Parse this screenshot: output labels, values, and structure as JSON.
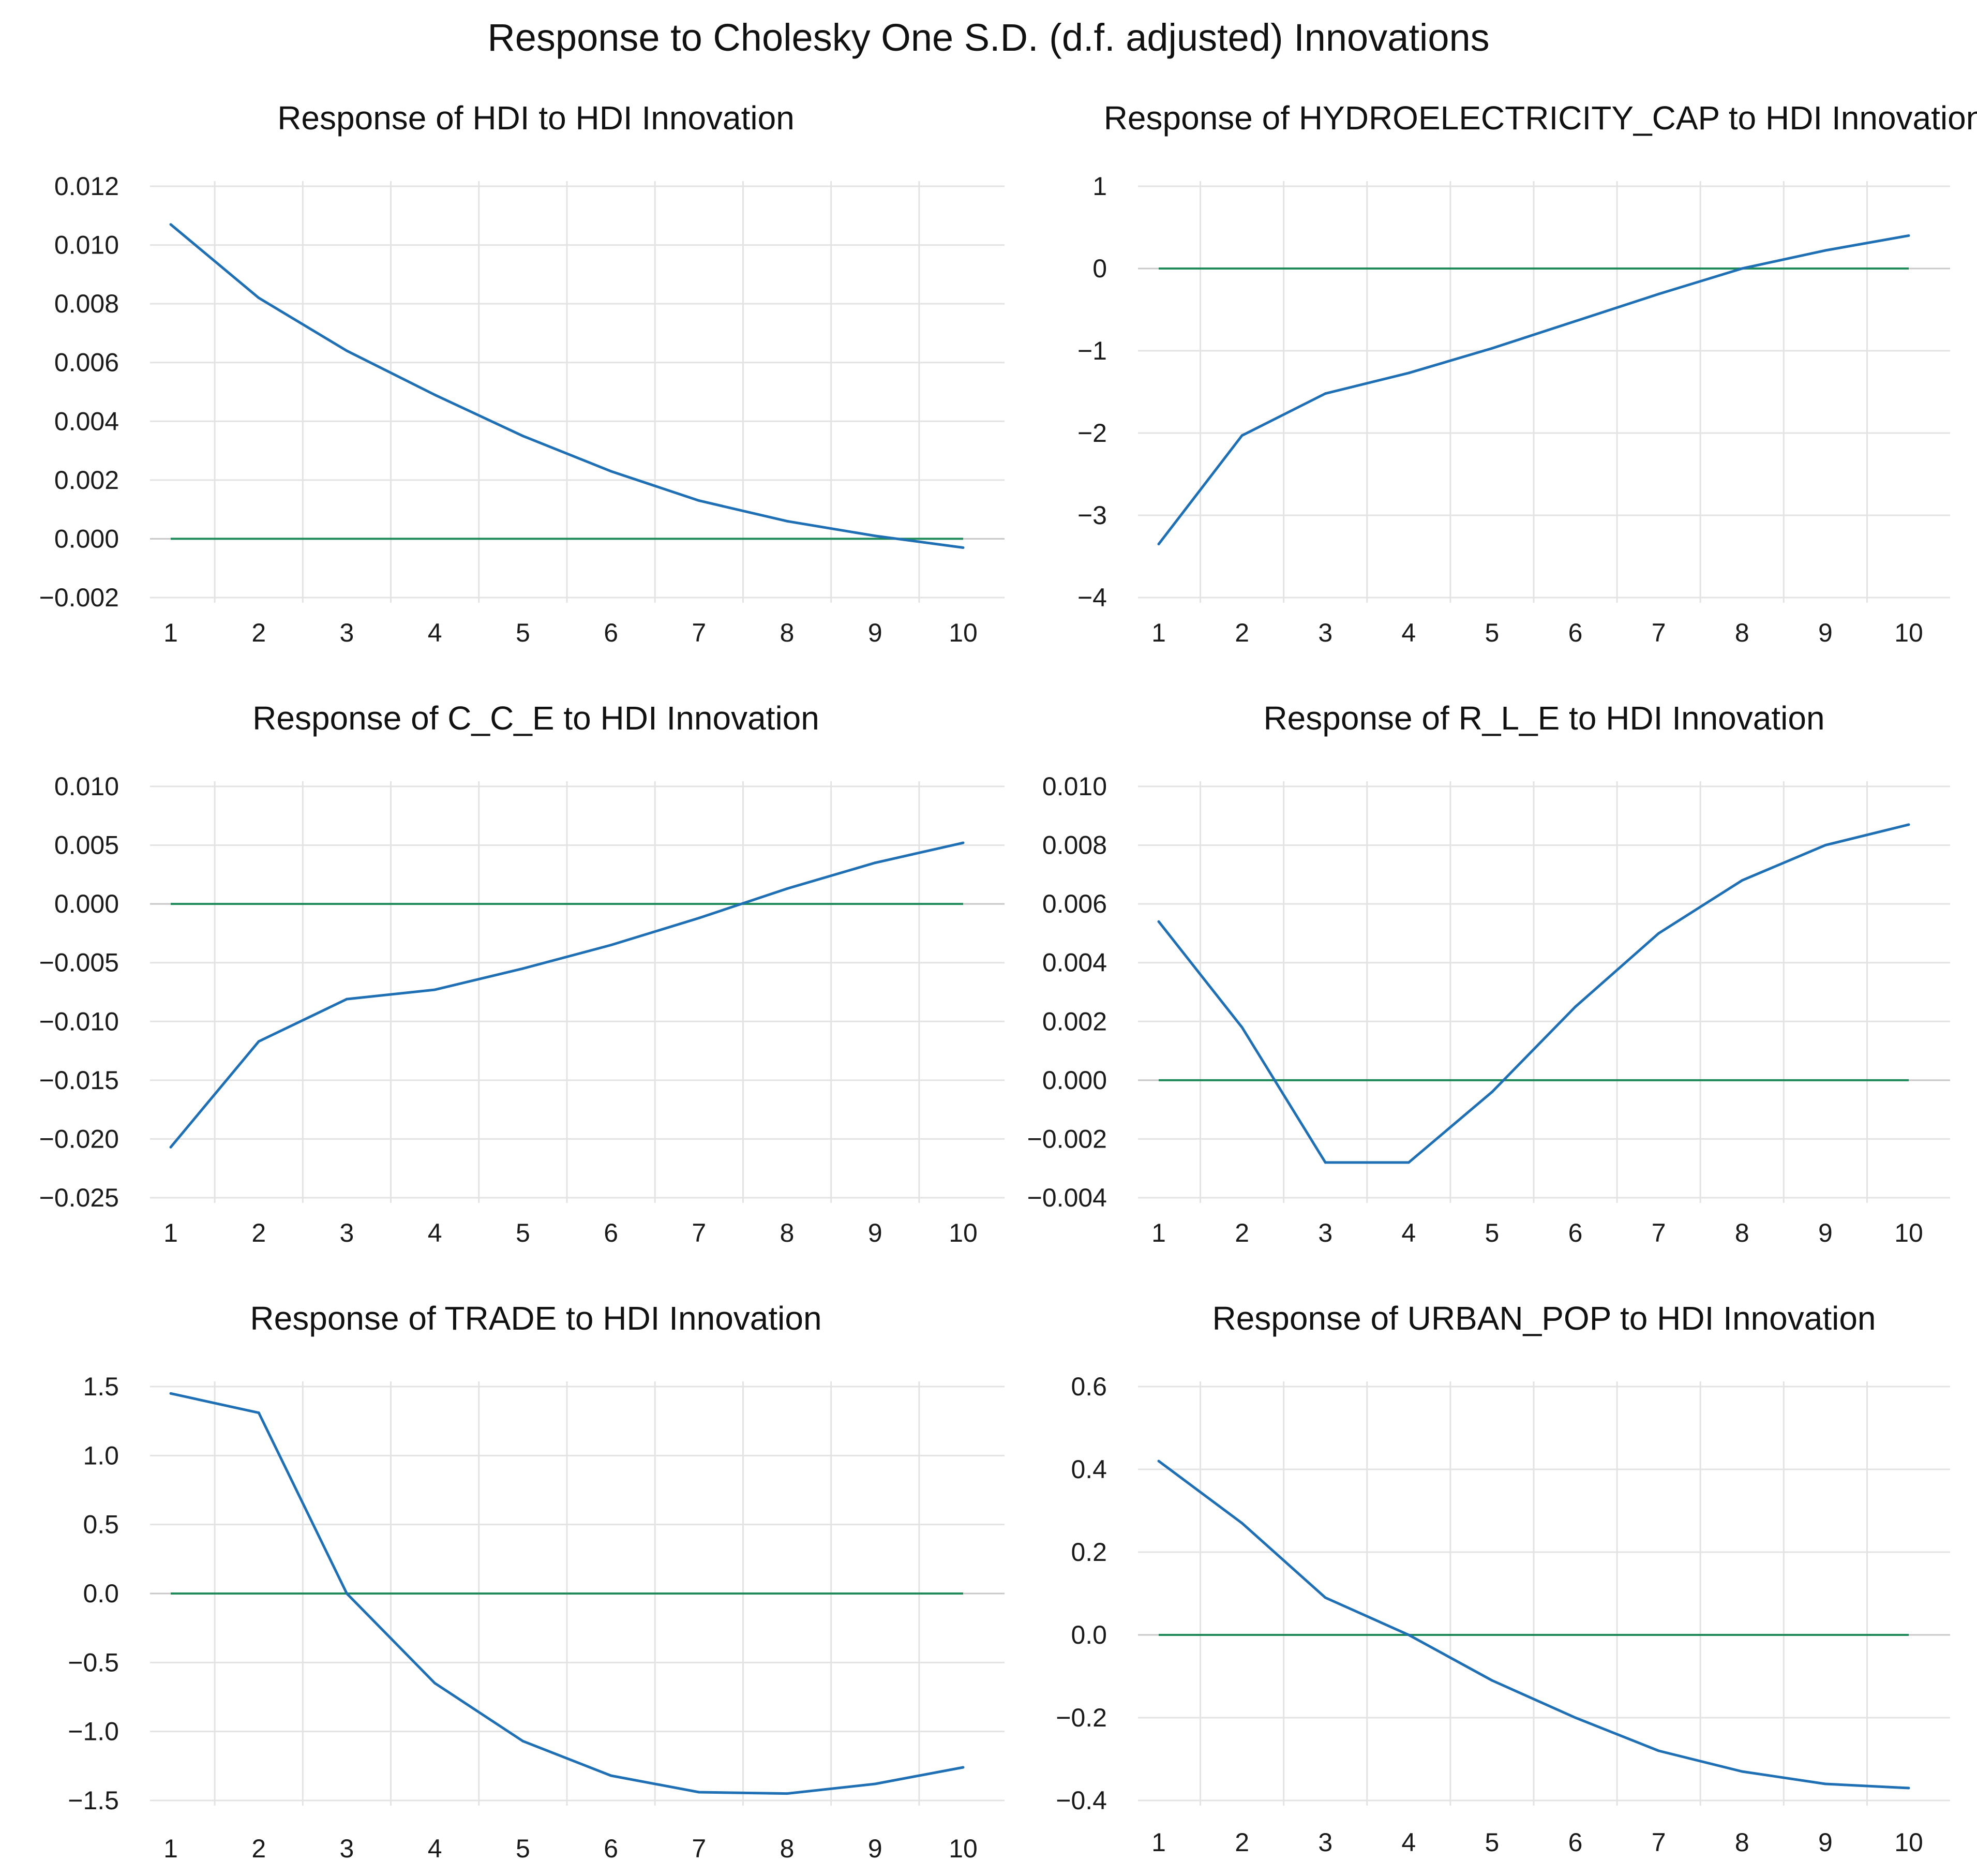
{
  "chart_data": {
    "title": "Response to Cholesky One S.D. (d.f. adjusted) Innovations",
    "colors": {
      "series": "#1f6fb4",
      "zero_line": "#1e8a5a",
      "grid": "#e3e3e3"
    },
    "panels": [
      {
        "type": "line",
        "title": "Response of HDI to HDI Innovation",
        "x": [
          1,
          2,
          3,
          4,
          5,
          6,
          7,
          8,
          9,
          10
        ],
        "x_labels": [
          "1",
          "2",
          "3",
          "4",
          "5",
          "6",
          "7",
          "8",
          "9",
          "10"
        ],
        "values": [
          0.0107,
          0.0082,
          0.0064,
          0.0049,
          0.0035,
          0.0023,
          0.0013,
          0.0006,
          0.0001,
          -0.0003
        ],
        "ylim": [
          -0.002,
          0.012
        ],
        "y_ticks": [
          0.012,
          0.01,
          0.008,
          0.006,
          0.004,
          0.002,
          0.0,
          -0.002
        ],
        "y_tick_labels": [
          "0.012",
          "0.010",
          "0.008",
          "0.006",
          "0.004",
          "0.002",
          "0.000",
          "−0.002"
        ]
      },
      {
        "type": "line",
        "title": "Response of HYDROELECTRICITY_CAP to HDI Innovation",
        "x": [
          1,
          2,
          3,
          4,
          5,
          6,
          7,
          8,
          9,
          10
        ],
        "x_labels": [
          "1",
          "2",
          "3",
          "4",
          "5",
          "6",
          "7",
          "8",
          "9",
          "10"
        ],
        "values": [
          -3.35,
          -2.03,
          -1.52,
          -1.27,
          -0.97,
          -0.64,
          -0.31,
          0.0,
          0.22,
          0.4
        ],
        "ylim": [
          -4,
          1
        ],
        "y_ticks": [
          1,
          0,
          -1,
          -2,
          -3,
          -4
        ],
        "y_tick_labels": [
          "1",
          "0",
          "−1",
          "−2",
          "−3",
          "−4"
        ]
      },
      {
        "type": "line",
        "title": "Response of C_C_E to HDI Innovation",
        "x": [
          1,
          2,
          3,
          4,
          5,
          6,
          7,
          8,
          9,
          10
        ],
        "x_labels": [
          "1",
          "2",
          "3",
          "4",
          "5",
          "6",
          "7",
          "8",
          "9",
          "10"
        ],
        "values": [
          -0.0207,
          -0.0117,
          -0.0081,
          -0.0073,
          -0.0055,
          -0.0035,
          -0.0012,
          0.0013,
          0.0035,
          0.0052
        ],
        "ylim": [
          -0.025,
          0.01
        ],
        "y_ticks": [
          0.01,
          0.005,
          0.0,
          -0.005,
          -0.01,
          -0.015,
          -0.02,
          -0.025
        ],
        "y_tick_labels": [
          "0.010",
          "0.005",
          "0.000",
          "−0.005",
          "−0.010",
          "−0.015",
          "−0.020",
          "−0.025"
        ]
      },
      {
        "type": "line",
        "title": "Response of R_L_E to HDI Innovation",
        "x": [
          1,
          2,
          3,
          4,
          5,
          6,
          7,
          8,
          9,
          10
        ],
        "x_labels": [
          "1",
          "2",
          "3",
          "4",
          "5",
          "6",
          "7",
          "8",
          "9",
          "10"
        ],
        "values": [
          0.0054,
          0.0018,
          -0.0028,
          -0.0028,
          -0.0004,
          0.0025,
          0.005,
          0.0068,
          0.008,
          0.0087
        ],
        "ylim": [
          -0.004,
          0.01
        ],
        "y_ticks": [
          0.01,
          0.008,
          0.006,
          0.004,
          0.002,
          0.0,
          -0.002,
          -0.004
        ],
        "y_tick_labels": [
          "0.010",
          "0.008",
          "0.006",
          "0.004",
          "0.002",
          "0.000",
          "−0.002",
          "−0.004"
        ]
      },
      {
        "type": "line",
        "title": "Response of TRADE to HDI Innovation",
        "x": [
          1,
          2,
          3,
          4,
          5,
          6,
          7,
          8,
          9,
          10
        ],
        "x_labels": [
          "1",
          "2",
          "3",
          "4",
          "5",
          "6",
          "7",
          "8",
          "9",
          "10"
        ],
        "values": [
          1.45,
          1.31,
          0.0,
          -0.65,
          -1.07,
          -1.32,
          -1.44,
          -1.45,
          -1.38,
          -1.26
        ],
        "ylim": [
          -1.5,
          1.5
        ],
        "y_ticks": [
          1.5,
          1.0,
          0.5,
          0.0,
          -0.5,
          -1.0,
          -1.5
        ],
        "y_tick_labels": [
          "1.5",
          "1.0",
          "0.5",
          "0.0",
          "−0.5",
          "−1.0",
          "−1.5"
        ]
      },
      {
        "type": "line",
        "title": "Response of URBAN_POP to HDI Innovation",
        "x": [
          1,
          2,
          3,
          4,
          5,
          6,
          7,
          8,
          9,
          10
        ],
        "x_labels": [
          "1",
          "2",
          "3",
          "4",
          "5",
          "6",
          "7",
          "8",
          "9",
          "10"
        ],
        "values": [
          0.42,
          0.27,
          0.09,
          0.0,
          -0.11,
          -0.2,
          -0.28,
          -0.33,
          -0.36,
          -0.37
        ],
        "ylim": [
          -0.4,
          0.6
        ],
        "y_ticks": [
          0.6,
          0.4,
          0.2,
          0.0,
          -0.2,
          -0.4
        ],
        "y_tick_labels": [
          "0.6",
          "0.4",
          "0.2",
          "0.0",
          "−0.2",
          "−0.4"
        ]
      }
    ]
  }
}
